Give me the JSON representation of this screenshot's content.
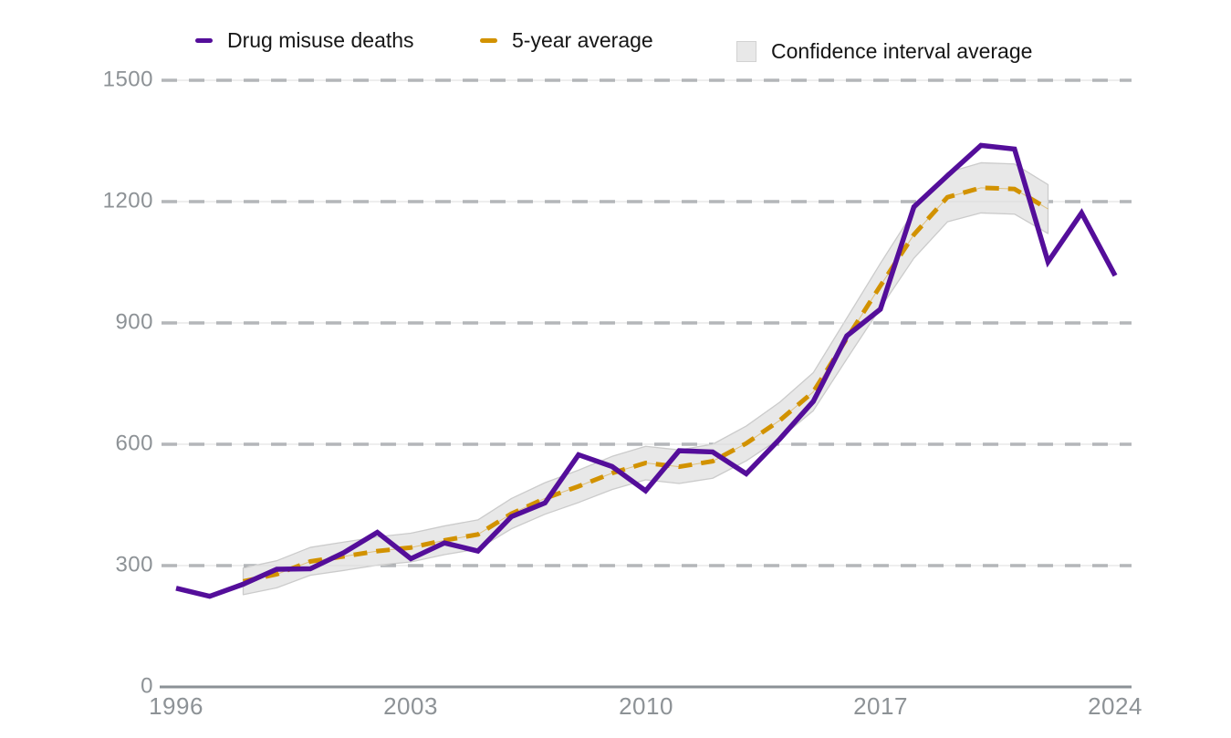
{
  "chart_data": {
    "type": "line",
    "title": "",
    "legend_position": "top",
    "grid": "horizontal-dashed",
    "xlim": [
      1996,
      2024
    ],
    "ylim": [
      0,
      1500
    ],
    "x_tick_labels": [
      "1996",
      "2003",
      "2010",
      "2017",
      "2024"
    ],
    "y_tick_labels": [
      "1500",
      "1200",
      "900",
      "600",
      "300",
      "0"
    ],
    "y_ticks": [
      0,
      300,
      600,
      900,
      1200,
      1500
    ],
    "colors": {
      "grid_dash": "#8b9196",
      "grid_faint": "#dcdcdc",
      "axis": "#8b9196",
      "band_fill": "#e8e8e8",
      "band_edge": "#cbcbcb",
      "tick_text": "#8d9296",
      "legend_text": "#161616"
    },
    "series": [
      {
        "name": "Drug misuse deaths",
        "style": "solid",
        "color": "#540e9a",
        "years": [
          1996,
          1997,
          1998,
          1999,
          2000,
          2001,
          2002,
          2003,
          2004,
          2005,
          2006,
          2007,
          2008,
          2009,
          2010,
          2011,
          2012,
          2013,
          2014,
          2015,
          2016,
          2017,
          2018,
          2019,
          2020,
          2021,
          2022,
          2023,
          2024
        ],
        "values": [
          244,
          224,
          254,
          291,
          292,
          332,
          382,
          317,
          356,
          336,
          421,
          455,
          574,
          545,
          485,
          584,
          581,
          527,
          613,
          706,
          868,
          934,
          1187,
          1264,
          1339,
          1330,
          1051,
          1172,
          1017
        ]
      },
      {
        "name": "5-year average",
        "style": "dashed",
        "color": "#d29200",
        "years": [
          1998,
          1999,
          2000,
          2001,
          2002,
          2003,
          2004,
          2005,
          2006,
          2007,
          2008,
          2009,
          2010,
          2011,
          2012,
          2013,
          2014,
          2015,
          2016,
          2017,
          2018,
          2019,
          2020,
          2021,
          2022
        ],
        "values": [
          261.0,
          278.6,
          310.2,
          322.8,
          335.8,
          344.6,
          362.4,
          377.0,
          428.4,
          466.2,
          496.0,
          528.6,
          553.8,
          544.4,
          558.0,
          602.2,
          659.0,
          729.6,
          861.6,
          991.8,
          1118.4,
          1210.8,
          1234.2,
          1231.2,
          1181.8
        ]
      }
    ],
    "band": {
      "name": "Confidence interval average",
      "years": [
        1998,
        1999,
        2000,
        2001,
        2002,
        2003,
        2004,
        2005,
        2006,
        2007,
        2008,
        2009,
        2010,
        2011,
        2012,
        2013,
        2014,
        2015,
        2016,
        2017,
        2018,
        2019,
        2020,
        2021,
        2022
      ],
      "upper": [
        294,
        312,
        345,
        358,
        371,
        380,
        398,
        413,
        466,
        505,
        536,
        570,
        595,
        586,
        600,
        645,
        704,
        777,
        912,
        1047,
        1177,
        1272,
        1296,
        1293,
        1242
      ],
      "lower": [
        228,
        245,
        276,
        288,
        301,
        309,
        327,
        341,
        391,
        427,
        456,
        488,
        512,
        503,
        516,
        559,
        614,
        683,
        811,
        937,
        1060,
        1150,
        1172,
        1169,
        1121
      ]
    }
  },
  "legend": {
    "items": [
      {
        "label": "Drug misuse deaths",
        "swatch": "dash"
      },
      {
        "label": "5-year average",
        "swatch": "dash"
      },
      {
        "label": "Confidence interval average",
        "swatch": "box"
      }
    ]
  }
}
